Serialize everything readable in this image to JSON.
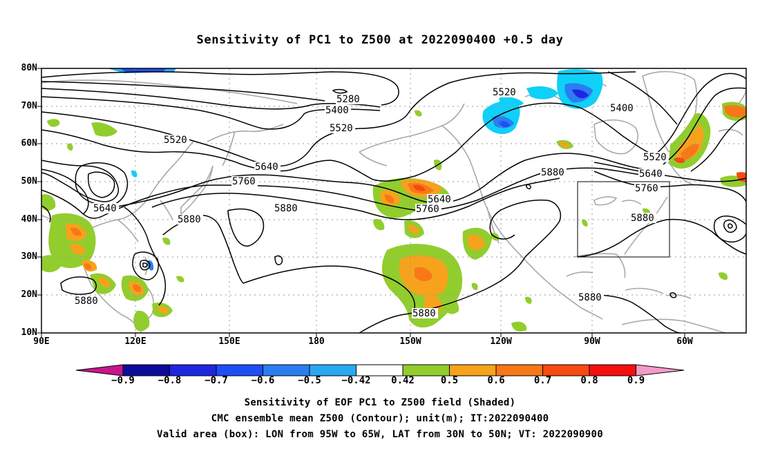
{
  "title": "Sensitivity of PC1 to Z500 at 2022090400 +0.5 day",
  "lat_labels": [
    "80N",
    "70N",
    "60N",
    "50N",
    "40N",
    "30N",
    "20N",
    "10N"
  ],
  "lon_labels": [
    "90E",
    "120E",
    "150E",
    "180",
    "150W",
    "120W",
    "90W",
    "60W"
  ],
  "contour_labels": {
    "c5280": "5280",
    "c5400a": "5400",
    "c5400b": "5400",
    "c5520a": "5520",
    "c5520b": "5520",
    "c5520c": "5520",
    "c5520d": "5520",
    "c5640a": "5640",
    "c5640b": "5640",
    "c5640c": "5640",
    "c5640d": "5640",
    "c5760a": "5760",
    "c5760b": "5760",
    "c5760c": "5760",
    "c5880a": "5880",
    "c5880b": "5880",
    "c5880c": "5880",
    "c5880d": "5880",
    "c5880e": "5880",
    "c5880f": "5880",
    "c5880g": "5880"
  },
  "colorbar": {
    "labels": [
      "−0.9",
      "−0.8",
      "−0.7",
      "−0.6",
      "−0.5",
      "−0.42",
      "0.42",
      "0.5",
      "0.6",
      "0.7",
      "0.8",
      "0.9"
    ],
    "colors": {
      "under": "#c8158c",
      "over": "#f59ac8",
      "c1": "#0b0b9c",
      "c2": "#1f26e0",
      "c3": "#1e4ef5",
      "c4": "#2b7df2",
      "c5": "#28a8f2",
      "c6": "#0fd0f8",
      "c7": "#ffffff",
      "c8": "#92cd2e",
      "c9": "#f7a21c",
      "c10": "#f87817",
      "c11": "#f84a12",
      "c12": "#f50f0f"
    }
  },
  "captions": {
    "line1": "Sensitivity of EOF PC1 to Z500 field (Shaded)",
    "line2": "CMC ensemble mean Z500 (Contour); unit(m); IT:2022090400",
    "line3": "Valid area (box): LON from 95W to 65W, LAT from 30N to 50N; VT: 2022090900"
  },
  "valid_box": {
    "lon_west": "95W",
    "lon_east": "65W",
    "lat_south": "30N",
    "lat_north": "50N"
  }
}
